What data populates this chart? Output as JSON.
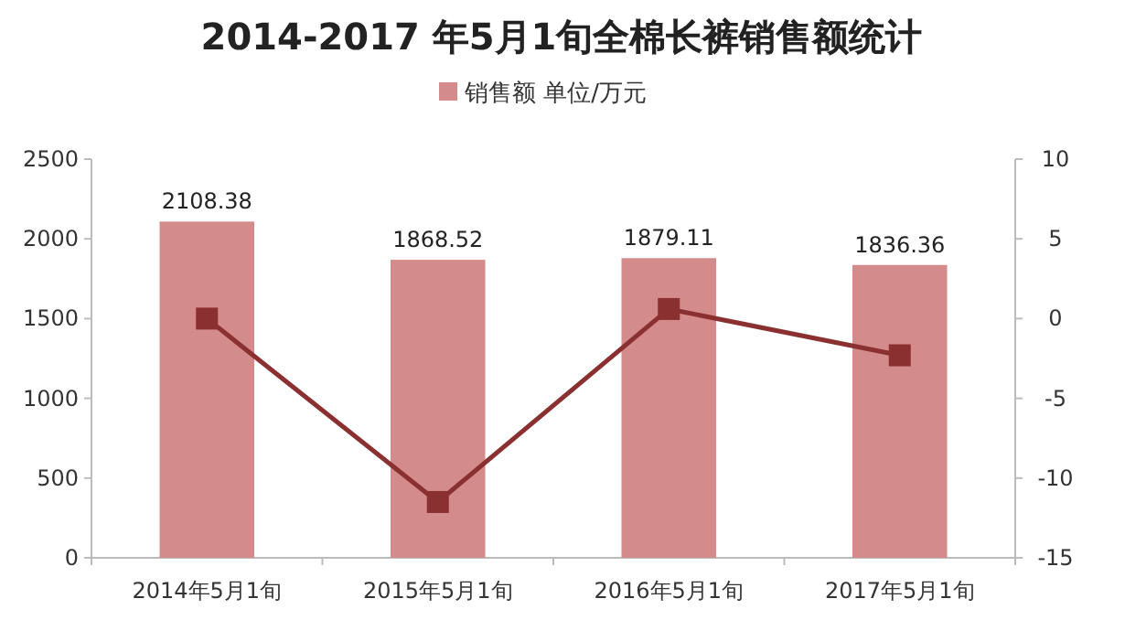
{
  "chart_data": {
    "type": "bar",
    "title": "2014-2017 年5月1旬全棉长裤销售额统计",
    "categories": [
      "2014年5月1旬",
      "2015年5月1旬",
      "2016年5月1旬",
      "2017年5月1旬"
    ],
    "series": [
      {
        "name": "销售额  单位/万元",
        "color": "#d48b8b",
        "values": [
          2108.38,
          1868.52,
          1879.11,
          1836.36
        ],
        "value_labels": [
          "2108.38",
          "1868.52",
          "1879.11",
          "1836.36"
        ]
      },
      {
        "type": "line",
        "axis": "y2",
        "color": "#8b3030",
        "values": [
          0,
          -11.5,
          0.6,
          -2.3
        ],
        "marker": "square",
        "line_style": "solid"
      }
    ],
    "ylim": [
      0,
      2500
    ],
    "yticks": [
      0,
      500,
      1000,
      1500,
      2000,
      2500
    ],
    "y2lim": [
      -15,
      10
    ],
    "y2ticks": [
      -15,
      -10,
      -5,
      0,
      5,
      10
    ],
    "legend": "top",
    "grid": false
  }
}
